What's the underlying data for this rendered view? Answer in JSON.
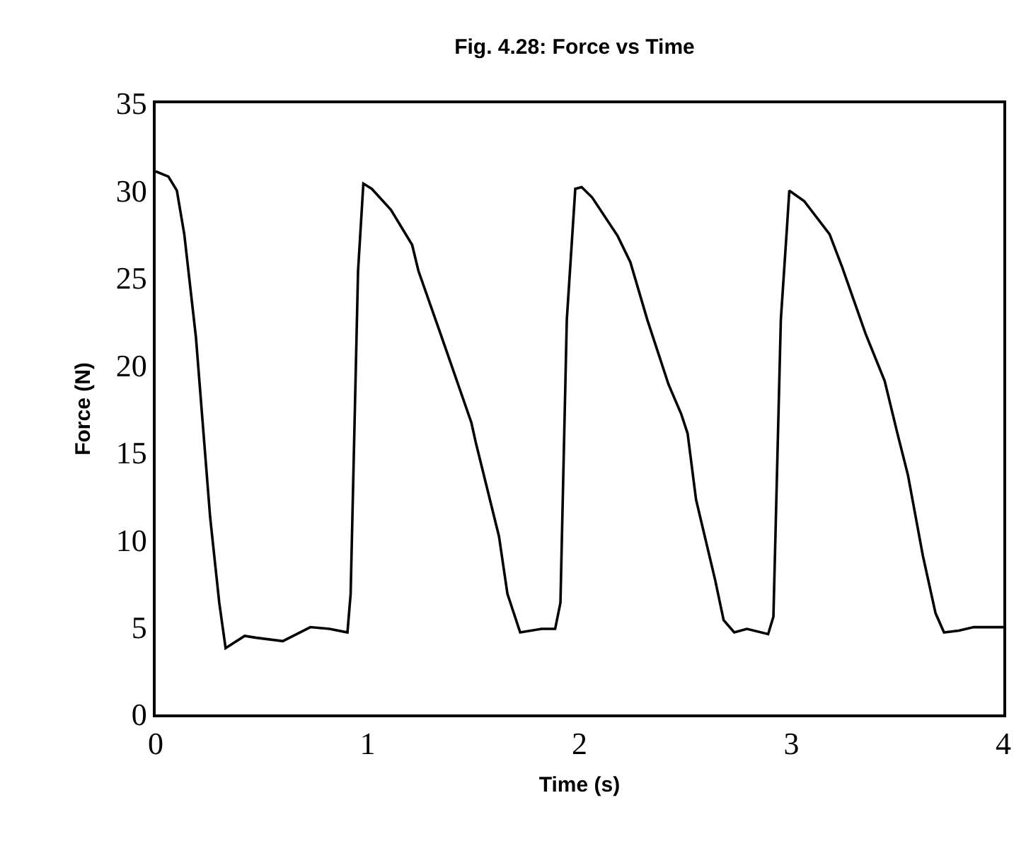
{
  "chart_data": {
    "type": "line",
    "title": "Fig. 4.28: Force vs Time",
    "xlabel": "Time (s)",
    "ylabel": "Force (N)",
    "xlim": [
      0,
      4
    ],
    "xticks": [
      0,
      1,
      2,
      3,
      4
    ],
    "ylim": [
      0,
      35
    ],
    "yticks": [
      0,
      5,
      10,
      15,
      20,
      25,
      30,
      35
    ],
    "marker": "none",
    "line_style": "solid",
    "series": [
      {
        "color": "#000000",
        "x": [
          0,
          0.06,
          0.1,
          0.135,
          0.19,
          0.257,
          0.3,
          0.33,
          0.42,
          0.47,
          0.6,
          0.73,
          0.82,
          0.905,
          0.92,
          0.955,
          0.98,
          1.02,
          1.11,
          1.21,
          1.24,
          1.35,
          1.49,
          1.51,
          1.62,
          1.66,
          1.72,
          1.82,
          1.885,
          1.91,
          1.94,
          1.98,
          2.01,
          2.06,
          2.18,
          2.24,
          2.32,
          2.42,
          2.48,
          2.51,
          2.55,
          2.64,
          2.68,
          2.73,
          2.79,
          2.89,
          2.915,
          2.95,
          2.98,
          2.99,
          3.06,
          3.18,
          3.24,
          3.35,
          3.44,
          3.5,
          3.55,
          3.62,
          3.68,
          3.72,
          3.79,
          3.86,
          4.0
        ],
        "values": [
          31.1,
          30.8,
          30.0,
          27.5,
          21.6,
          11.3,
          6.4,
          3.8,
          4.5,
          4.4,
          4.2,
          5.0,
          4.9,
          4.7,
          6.9,
          25.4,
          30.4,
          30.1,
          28.9,
          26.9,
          25.4,
          21.6,
          16.7,
          15.6,
          10.2,
          6.9,
          4.7,
          4.9,
          4.9,
          6.4,
          22.6,
          30.1,
          30.2,
          29.6,
          27.4,
          25.9,
          22.6,
          18.9,
          17.2,
          16.1,
          12.3,
          7.7,
          5.4,
          4.7,
          4.9,
          4.6,
          5.6,
          22.6,
          28.1,
          30.0,
          29.4,
          27.5,
          25.6,
          21.8,
          19.1,
          16.1,
          13.7,
          9.1,
          5.8,
          4.7,
          4.8,
          5.0,
          5.0
        ]
      }
    ]
  }
}
